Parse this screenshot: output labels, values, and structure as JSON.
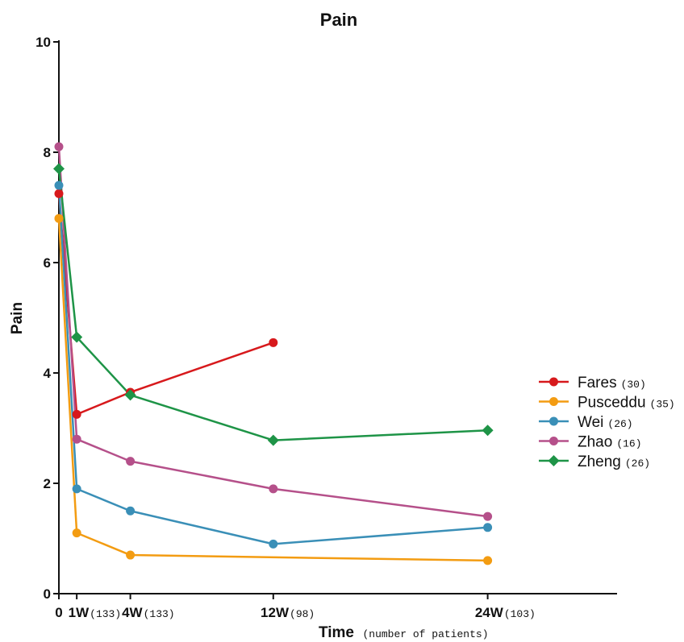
{
  "chart_data": {
    "type": "line",
    "title": "Pain",
    "ylabel": "Pain",
    "xlabel": "Time",
    "xlabel_note": "(number of patients)",
    "ylim": [
      0,
      10
    ],
    "xlim": [
      0,
      30
    ],
    "y_ticks": [
      0,
      2,
      4,
      6,
      8,
      10
    ],
    "x_ticks": [
      {
        "x": 0,
        "label": "0",
        "sub": ""
      },
      {
        "x": 1,
        "label": "1W",
        "sub": "(133)"
      },
      {
        "x": 4,
        "label": "4W",
        "sub": "(133)"
      },
      {
        "x": 12,
        "label": "12W",
        "sub": "(98)"
      },
      {
        "x": 24,
        "label": "24W",
        "sub": "(103)"
      }
    ],
    "legend_position": "right",
    "grid": false,
    "series": [
      {
        "name": "Fares",
        "count": "(30)",
        "color": "#d7191c",
        "marker": "circle",
        "points": [
          [
            0,
            7.25
          ],
          [
            1,
            3.25
          ],
          [
            4,
            3.65
          ],
          [
            12,
            4.55
          ]
        ]
      },
      {
        "name": "Pusceddu",
        "count": "(35)",
        "color": "#f39c12",
        "marker": "circle",
        "points": [
          [
            0,
            6.8
          ],
          [
            1,
            1.1
          ],
          [
            4,
            0.7
          ],
          [
            24,
            0.6
          ]
        ]
      },
      {
        "name": "Wei",
        "count": "(26)",
        "color": "#3a8fb7",
        "marker": "circle",
        "points": [
          [
            0,
            7.4
          ],
          [
            1,
            1.9
          ],
          [
            4,
            1.5
          ],
          [
            12,
            0.9
          ],
          [
            24,
            1.2
          ]
        ]
      },
      {
        "name": "Zhao",
        "count": "(16)",
        "color": "#b5508a",
        "marker": "circle",
        "points": [
          [
            0,
            8.1
          ],
          [
            1,
            2.8
          ],
          [
            4,
            2.4
          ],
          [
            12,
            1.9
          ],
          [
            24,
            1.4
          ]
        ]
      },
      {
        "name": "Zheng",
        "count": "(26)",
        "color": "#1e9447",
        "marker": "diamond",
        "points": [
          [
            0,
            7.7
          ],
          [
            1,
            4.65
          ],
          [
            4,
            3.6
          ],
          [
            12,
            2.78
          ],
          [
            24,
            2.96
          ]
        ]
      }
    ]
  }
}
